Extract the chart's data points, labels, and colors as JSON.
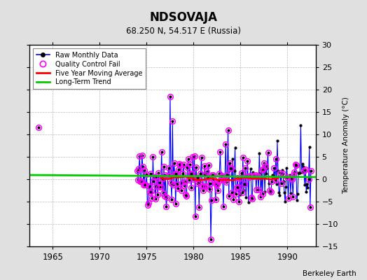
{
  "title": "NDSOVAJA",
  "subtitle": "68.250 N, 54.517 E (Russia)",
  "ylabel": "Temperature Anomaly (°C)",
  "attribution": "Berkeley Earth",
  "xlim": [
    1962.5,
    1993.0
  ],
  "ylim": [
    -15,
    30
  ],
  "yticks": [
    -15,
    -10,
    -5,
    0,
    5,
    10,
    15,
    20,
    25,
    30
  ],
  "xticks": [
    1965,
    1970,
    1975,
    1980,
    1985,
    1990
  ],
  "raw_color": "#0000ff",
  "qc_color": "#ff00ff",
  "ma_color": "#ff0000",
  "trend_color": "#00cc00",
  "bg_color": "#e0e0e0",
  "plot_bg": "#ffffff",
  "long_term_trend_slope": -0.015,
  "long_term_trend_intercept": 0.7,
  "seed": 42
}
